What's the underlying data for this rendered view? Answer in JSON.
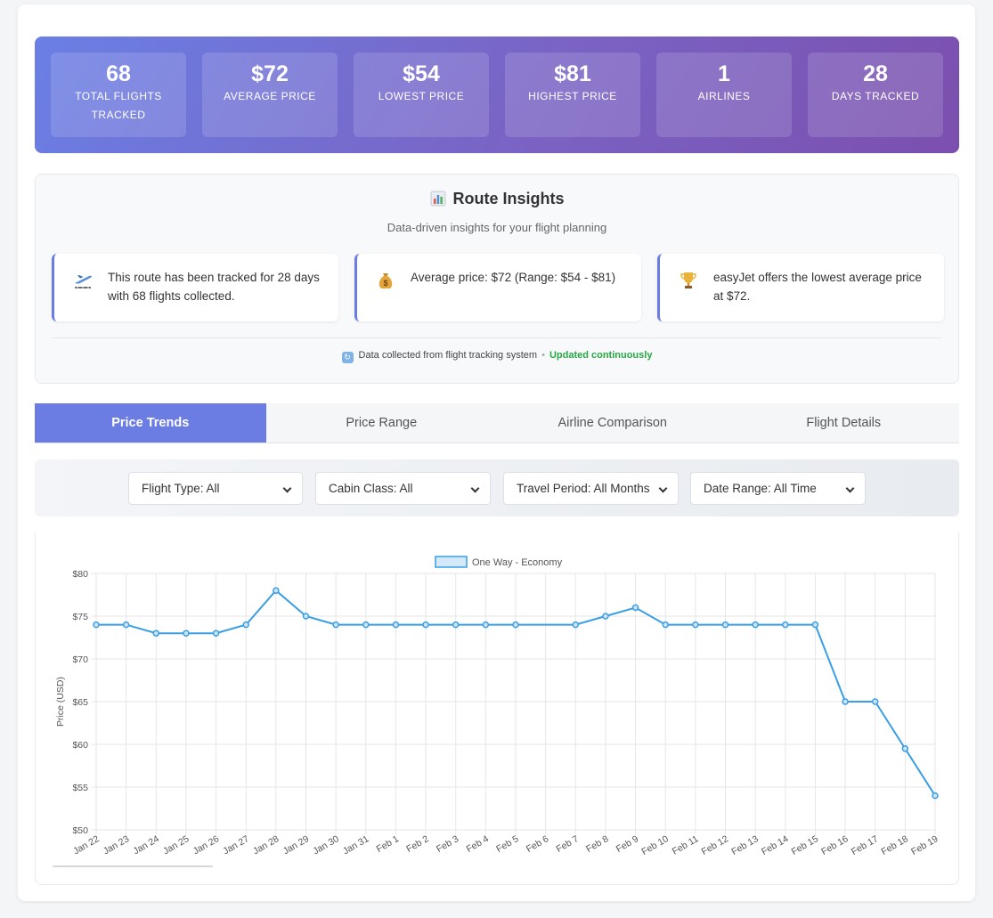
{
  "stats": [
    {
      "value": "68",
      "label": "TOTAL FLIGHTS TRACKED"
    },
    {
      "value": "$72",
      "label": "AVERAGE PRICE"
    },
    {
      "value": "$54",
      "label": "LOWEST PRICE"
    },
    {
      "value": "$81",
      "label": "HIGHEST PRICE"
    },
    {
      "value": "1",
      "label": "AIRLINES"
    },
    {
      "value": "28",
      "label": "DAYS TRACKED"
    }
  ],
  "insights": {
    "icon": "bar-chart-icon",
    "title": "Route Insights",
    "subtitle": "Data-driven insights for your flight planning",
    "cards": [
      {
        "icon": "airplane-departure-icon",
        "text": "This route has been tracked for 28 days with 68 flights collected."
      },
      {
        "icon": "money-bag-icon",
        "text": "Average price: $72 (Range: $54 - $81)"
      },
      {
        "icon": "trophy-icon",
        "text": "easyJet offers the lowest average price at $72."
      }
    ],
    "footer_text": "Data collected from flight tracking system",
    "footer_status": "Updated continuously"
  },
  "tabs": [
    "Price Trends",
    "Price Range",
    "Airline Comparison",
    "Flight Details"
  ],
  "active_tab": 0,
  "filters": [
    {
      "value": "Flight Type: All"
    },
    {
      "value": "Cabin Class: All"
    },
    {
      "value": "Travel Period: All Months"
    },
    {
      "value": "Date Range: All Time"
    }
  ],
  "colors": {
    "accent": "#6b7de3",
    "line": "#3a9ee4",
    "updated": "#28a745"
  },
  "chart_data": {
    "type": "line",
    "title": "",
    "xlabel": "",
    "ylabel": "Price (USD)",
    "ylim": [
      50,
      80
    ],
    "yticks": [
      "$50",
      "$55",
      "$60",
      "$65",
      "$70",
      "$75",
      "$80"
    ],
    "legend_position": "top",
    "grid": true,
    "categories": [
      "Jan 22",
      "Jan 23",
      "Jan 24",
      "Jan 25",
      "Jan 26",
      "Jan 27",
      "Jan 28",
      "Jan 29",
      "Jan 30",
      "Jan 31",
      "Feb 1",
      "Feb 2",
      "Feb 3",
      "Feb 4",
      "Feb 5",
      "Feb 6",
      "Feb 7",
      "Feb 8",
      "Feb 9",
      "Feb 10",
      "Feb 11",
      "Feb 12",
      "Feb 13",
      "Feb 14",
      "Feb 15",
      "Feb 16",
      "Feb 17",
      "Feb 18",
      "Feb 19"
    ],
    "series": [
      {
        "name": "One Way - Economy",
        "values": [
          74,
          74,
          73,
          73,
          73,
          74,
          78,
          75,
          74,
          74,
          74,
          74,
          74,
          74,
          74,
          null,
          74,
          75,
          76,
          74,
          74,
          74,
          74,
          74,
          74,
          65,
          65,
          59.5,
          54
        ]
      }
    ]
  }
}
